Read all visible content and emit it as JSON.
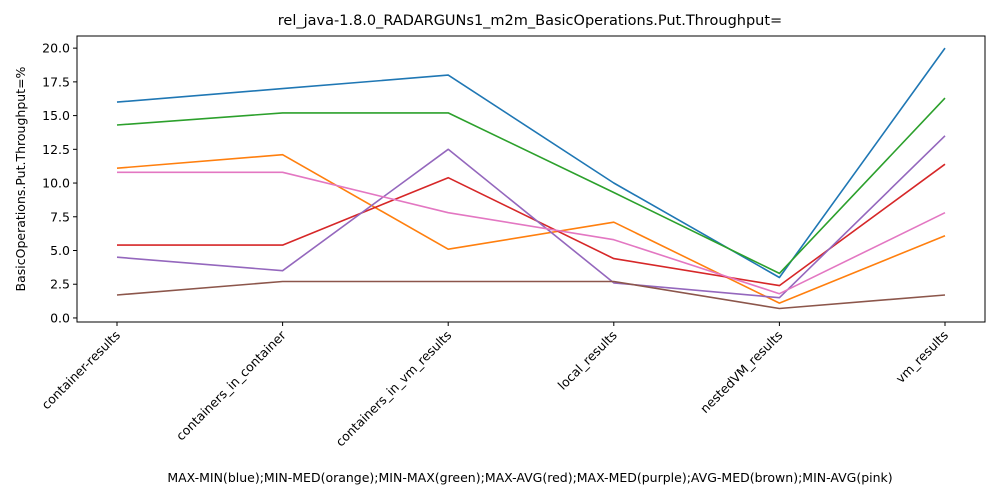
{
  "chart_data": {
    "type": "line",
    "title": "rel_java-1.8.0_RADARGUNs1_m2m_BasicOperations.Put.Throughput=",
    "xlabel": "MAX-MIN(blue);MIN-MED(orange);MIN-MAX(green);MAX-AVG(red);MAX-MED(purple);AVG-MED(brown);MIN-AVG(pink)",
    "ylabel": "BasicOperations.Put.Throughput=%",
    "categories": [
      "container-results",
      "containers_in_container",
      "containers_in_vm_results",
      "local_results",
      "nestedVM_results",
      "vm_results"
    ],
    "ylim": [
      -0.3,
      20.9
    ],
    "yticks": [
      "0.0",
      "2.5",
      "5.0",
      "7.5",
      "10.0",
      "12.5",
      "15.0",
      "17.5",
      "20.0"
    ],
    "grid": false,
    "series": [
      {
        "color": "#1f77b4",
        "values": [
          16.0,
          17.0,
          18.0,
          10.0,
          3.0,
          20.0
        ]
      },
      {
        "color": "#ff7f0e",
        "values": [
          11.1,
          12.1,
          5.1,
          7.1,
          1.1,
          6.1
        ]
      },
      {
        "color": "#2ca02c",
        "values": [
          14.3,
          15.2,
          15.2,
          9.3,
          3.3,
          16.3
        ]
      },
      {
        "color": "#d62728",
        "values": [
          5.4,
          5.4,
          10.4,
          4.4,
          2.4,
          11.4
        ]
      },
      {
        "color": "#9467bd",
        "values": [
          4.5,
          3.5,
          12.5,
          2.6,
          1.5,
          13.5
        ]
      },
      {
        "color": "#8c564b",
        "values": [
          1.7,
          2.7,
          2.7,
          2.7,
          0.7,
          1.7
        ]
      },
      {
        "color": "#e377c2",
        "values": [
          10.8,
          10.8,
          7.8,
          5.8,
          1.8,
          7.8
        ]
      }
    ]
  }
}
